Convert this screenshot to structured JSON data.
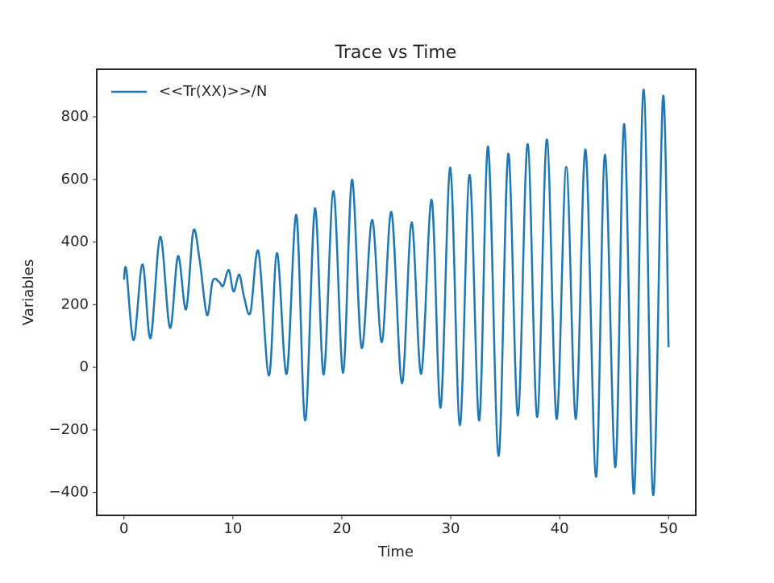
{
  "chart_data": {
    "type": "line",
    "title": "Trace vs Time",
    "xlabel": "Time",
    "ylabel": "Variables",
    "x": [
      0,
      0.22,
      0.89,
      1.7,
      2.44,
      3.33,
      4.22,
      4.96,
      5.7,
      6.36,
      6.95,
      7.62,
      8.14,
      8.73,
      9.1,
      9.62,
      10.06,
      10.58,
      11.02,
      11.61,
      12.35,
      13.31,
      14.05,
      14.94,
      15.83,
      16.64,
      17.53,
      18.34,
      19.23,
      20.12,
      20.93,
      21.82,
      22.78,
      23.67,
      24.56,
      25.52,
      26.41,
      27.29,
      28.25,
      29.07,
      29.96,
      30.84,
      31.73,
      32.62,
      33.43,
      34.39,
      35.28,
      36.17,
      37.06,
      37.94,
      38.83,
      39.72,
      40.61,
      41.49,
      42.38,
      43.34,
      44.16,
      45.12,
      45.93,
      46.82,
      47.71,
      48.59,
      49.48,
      50
    ],
    "series": [
      {
        "name": "<<Tr(XX)>>/N",
        "color": "#1f77b4",
        "values": [
          280,
          311,
          87,
          329,
          93,
          417,
          126,
          355,
          185,
          435,
          342,
          167,
          275,
          273,
          260,
          311,
          242,
          296,
          226,
          175,
          370,
          -26,
          365,
          -21,
          486,
          -170,
          507,
          -23,
          563,
          -18,
          599,
          62,
          471,
          80,
          496,
          -51,
          463,
          -21,
          535,
          -129,
          638,
          -185,
          615,
          -170,
          705,
          -283,
          682,
          -154,
          713,
          -159,
          728,
          -165,
          640,
          -165,
          695,
          -350,
          679,
          -319,
          777,
          -404,
          887,
          -409,
          862,
          64
        ]
      }
    ],
    "xlim": [
      -2.5,
      52.5
    ],
    "xticks": [
      0,
      10,
      20,
      30,
      40,
      50
    ],
    "ylim": [
      -473,
      952
    ],
    "yticks": [
      {
        "value": -400,
        "label": "−400"
      },
      {
        "value": -200,
        "label": "−200"
      },
      0,
      200,
      400,
      600,
      800
    ],
    "legend": "upper left",
    "grid": false
  }
}
